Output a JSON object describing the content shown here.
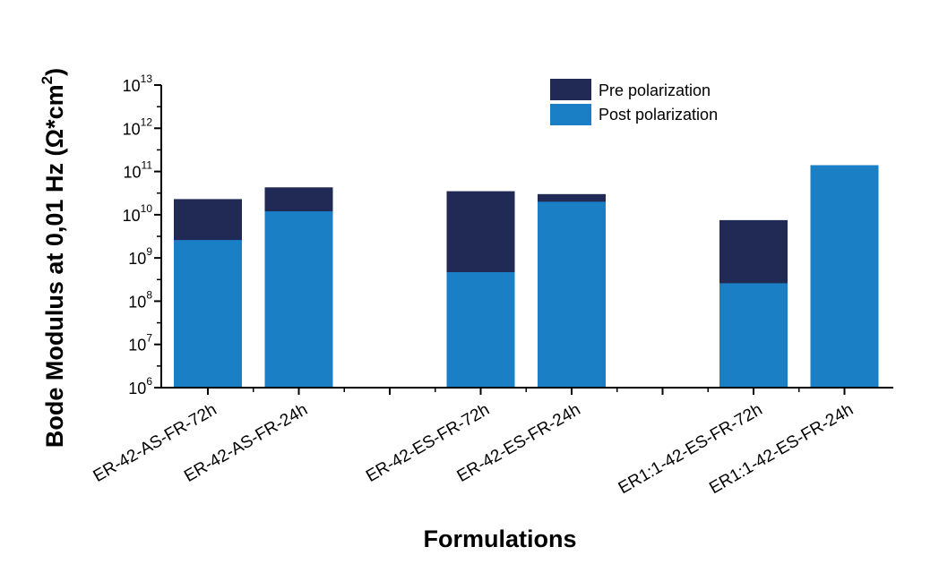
{
  "chart_data": {
    "type": "bar",
    "stacked_overlay": true,
    "yscale": "log",
    "ylim": [
      1000000.0,
      10000000000000.0
    ],
    "ytick_base": "10",
    "yticks_exponents": [
      "6",
      "7",
      "8",
      "9",
      "10",
      "11",
      "12",
      "13"
    ],
    "xlabel": "Formulations",
    "ylabel": {
      "main": "Bode Modulus at 0,01 Hz (Ω*cm",
      "superscript": "2",
      "close": ")"
    },
    "categories": [
      "ER-42-AS-FR-72h",
      "ER-42-AS-FR-24h",
      "",
      "ER-42-ES-FR-72h",
      "ER-42-ES-FR-24h",
      "",
      "ER1:1-42-ES-FR-72h",
      "ER1:1-42-ES-FR-24h"
    ],
    "series": [
      {
        "name": "Pre polarization",
        "color": "#212a54",
        "values": [
          23000000000.0,
          43000000000.0,
          null,
          35000000000.0,
          30000000000.0,
          null,
          7500000000.0,
          140000000000.0
        ]
      },
      {
        "name": "Post polarization",
        "color": "#1a7fc4",
        "values": [
          2600000000.0,
          12000000000.0,
          null,
          470000000.0,
          20000000000.0,
          null,
          260000000.0,
          140000000000.0
        ]
      }
    ],
    "legend_position": "top-right"
  }
}
